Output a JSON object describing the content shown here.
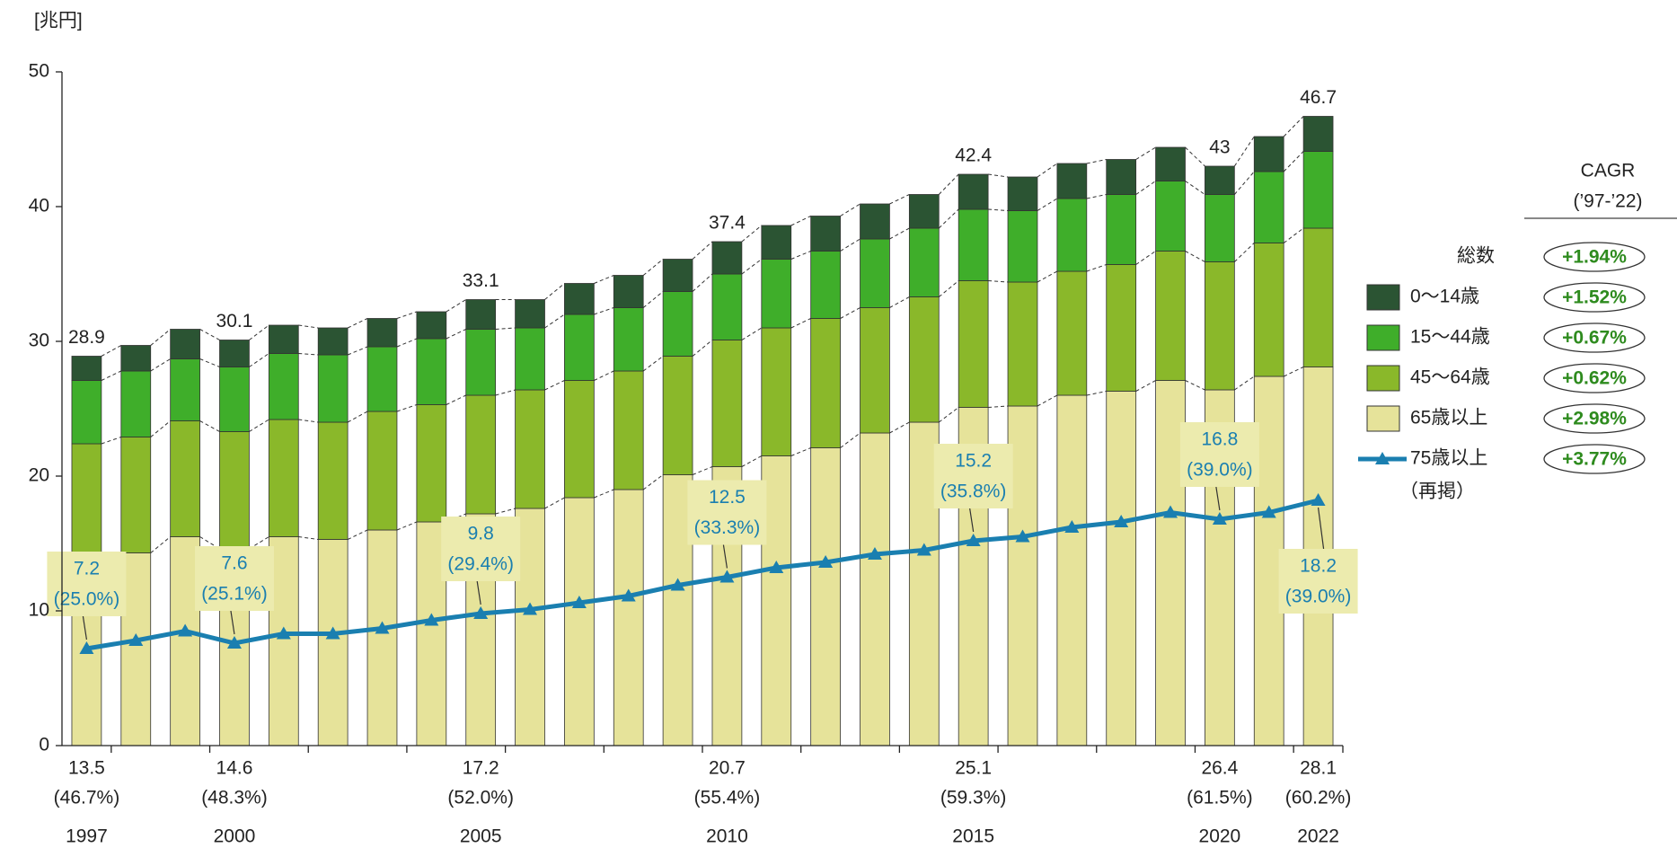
{
  "chart_data": {
    "type": "bar",
    "stacked": true,
    "y_label": "[兆円]",
    "ylim": [
      0,
      50
    ],
    "yticks": [
      0,
      10,
      20,
      30,
      40,
      50
    ],
    "categories": [
      "1997",
      null,
      null,
      "2000",
      null,
      null,
      null,
      null,
      "2005",
      null,
      null,
      null,
      null,
      "2010",
      null,
      null,
      null,
      null,
      "2015",
      null,
      null,
      null,
      null,
      "2020",
      null,
      "2022"
    ],
    "totals": [
      28.9,
      null,
      null,
      30.1,
      null,
      null,
      null,
      null,
      33.1,
      null,
      null,
      null,
      null,
      37.4,
      null,
      null,
      null,
      null,
      42.4,
      null,
      null,
      null,
      null,
      43.0,
      null,
      46.7
    ],
    "series": [
      {
        "name": "0〜14歳",
        "color": "#2b5433",
        "cagr": "+1.52%",
        "values": [
          1.8,
          1.9,
          2.2,
          2.0,
          2.1,
          2.0,
          2.1,
          2.0,
          2.2,
          2.1,
          2.3,
          2.4,
          2.4,
          2.4,
          2.5,
          2.6,
          2.6,
          2.5,
          2.6,
          2.5,
          2.6,
          2.6,
          2.5,
          2.1,
          2.6,
          2.6
        ]
      },
      {
        "name": "15〜44歳",
        "color": "#3fae2a",
        "cagr": "+0.67%",
        "values": [
          4.7,
          4.9,
          4.6,
          4.8,
          4.9,
          5.0,
          4.8,
          4.9,
          4.9,
          4.6,
          4.9,
          4.7,
          4.8,
          4.9,
          5.1,
          5.0,
          5.1,
          5.1,
          5.3,
          5.3,
          5.4,
          5.2,
          5.2,
          5.0,
          5.3,
          5.7
        ]
      },
      {
        "name": "45〜64歳",
        "color": "#8ab82a",
        "cagr": "+0.62%",
        "values": [
          8.9,
          8.6,
          8.6,
          8.7,
          8.7,
          8.7,
          8.8,
          8.7,
          8.8,
          8.8,
          8.7,
          8.8,
          8.8,
          9.4,
          9.5,
          9.6,
          9.3,
          9.3,
          9.4,
          9.2,
          9.2,
          9.4,
          9.6,
          9.5,
          9.9,
          10.3
        ]
      },
      {
        "name": "65歳以上",
        "color": "#e6e39a",
        "cagr": "+2.98%",
        "values": [
          13.5,
          14.3,
          15.5,
          14.6,
          15.5,
          15.3,
          16.0,
          16.6,
          17.2,
          17.6,
          18.4,
          19.0,
          20.1,
          20.7,
          21.5,
          22.1,
          23.2,
          24.0,
          25.1,
          25.2,
          26.0,
          26.3,
          27.1,
          26.4,
          27.4,
          28.1
        ],
        "share_labels": [
          "(46.7%)",
          null,
          null,
          "(48.3%)",
          null,
          null,
          null,
          null,
          "(52.0%)",
          null,
          null,
          null,
          null,
          "(55.4%)",
          null,
          null,
          null,
          null,
          "(59.3%)",
          null,
          null,
          null,
          null,
          "(61.5%)",
          null,
          "(60.2%)"
        ]
      },
      {
        "name": "75歳以上",
        "note": "（再掲）",
        "type": "line",
        "color": "#1a7fb0",
        "cagr": "+3.77%",
        "values": [
          7.2,
          7.8,
          8.5,
          7.6,
          8.3,
          8.3,
          8.7,
          9.3,
          9.8,
          10.1,
          10.6,
          11.1,
          11.9,
          12.5,
          13.2,
          13.6,
          14.2,
          14.5,
          15.2,
          15.5,
          16.2,
          16.6,
          17.3,
          16.8,
          17.3,
          18.2
        ],
        "share_labels": [
          "(25.0%)",
          null,
          null,
          "(25.1%)",
          null,
          null,
          null,
          null,
          "(29.4%)",
          null,
          null,
          null,
          null,
          "(33.3%)",
          null,
          null,
          null,
          null,
          "(35.8%)",
          null,
          null,
          null,
          null,
          "(39.0%)",
          null,
          "(39.0%)"
        ]
      }
    ],
    "cagr_title": "CAGR",
    "cagr_period": "(’97-’22)",
    "total_name": "総数",
    "total_cagr": "+1.94%"
  }
}
